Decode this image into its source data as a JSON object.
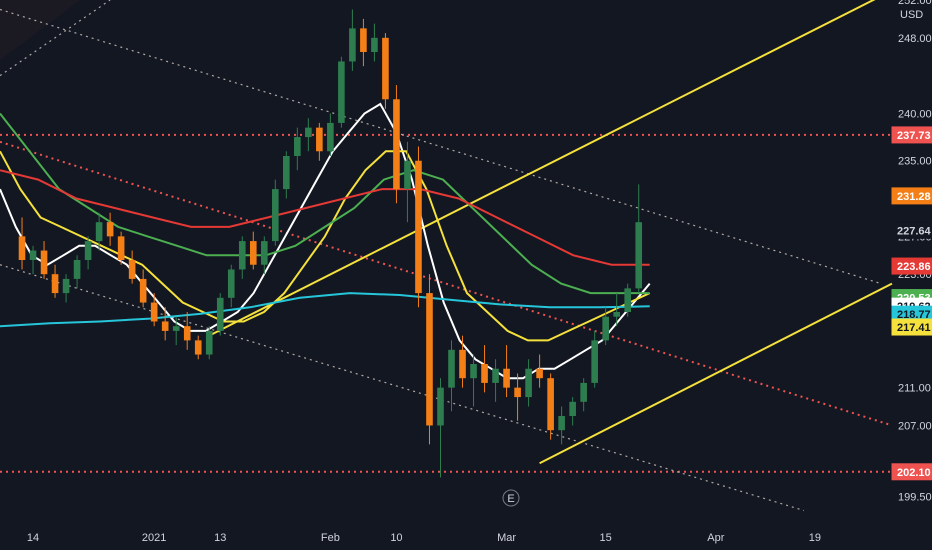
{
  "currency": "USD",
  "earnings_marker": "E",
  "colors": {
    "background": "#131722",
    "up": "#26a69a",
    "up_candle": "#2e7d4f",
    "down_candle": "#f57f17",
    "sma_white": "#ffffff",
    "sma_yellow": "#f5e13c",
    "sma_green": "#4caf50",
    "sma_red": "#e53935",
    "sma_teal": "#26c6da",
    "level_line": "#ef5350",
    "trendline": "#f5e13c",
    "channel": "#b0a9a5"
  },
  "chart_data": {
    "type": "candlestick",
    "x_axis": {
      "tick_labels": [
        "14",
        "2021",
        "13",
        "Feb",
        "10",
        "Mar",
        "15",
        "Apr",
        "19"
      ],
      "tick_index": [
        2,
        13,
        19,
        29,
        35,
        45,
        54,
        64,
        73
      ]
    },
    "y_axis": {
      "range": [
        197.0,
        252.0
      ],
      "tick_labels": [
        "199.50",
        "202.00",
        "207.00",
        "211.00",
        "219.00",
        "223.00",
        "227.00",
        "235.00",
        "240.00",
        "248.00",
        "252.00"
      ],
      "tick_values": [
        199.5,
        202.0,
        207.0,
        211.0,
        219.0,
        223.0,
        227.0,
        235.0,
        240.0,
        248.0,
        252.0
      ]
    },
    "candles": [
      [
        227.0,
        229.0,
        223.5,
        224.5
      ],
      [
        224.5,
        226.0,
        223.0,
        225.5
      ],
      [
        225.5,
        226.5,
        222.5,
        223.0
      ],
      [
        223.0,
        224.0,
        220.5,
        221.0
      ],
      [
        221.0,
        223.0,
        220.0,
        222.5
      ],
      [
        222.5,
        225.0,
        221.5,
        224.5
      ],
      [
        224.5,
        227.0,
        223.5,
        226.5
      ],
      [
        226.5,
        229.5,
        225.5,
        228.5
      ],
      [
        228.5,
        229.5,
        226.0,
        227.0
      ],
      [
        227.0,
        227.5,
        224.0,
        224.5
      ],
      [
        224.5,
        225.5,
        222.0,
        222.5
      ],
      [
        222.5,
        223.5,
        219.5,
        220.0
      ],
      [
        220.0,
        221.0,
        217.5,
        218.0
      ],
      [
        218.0,
        219.5,
        216.0,
        217.0
      ],
      [
        217.0,
        218.5,
        215.5,
        217.5
      ],
      [
        217.5,
        219.0,
        215.0,
        216.0
      ],
      [
        216.0,
        216.5,
        214.0,
        214.5
      ],
      [
        214.5,
        217.5,
        214.0,
        217.0
      ],
      [
        217.0,
        221.0,
        216.5,
        220.5
      ],
      [
        220.5,
        224.0,
        219.5,
        223.5
      ],
      [
        223.5,
        227.0,
        222.5,
        226.5
      ],
      [
        226.5,
        227.5,
        223.5,
        224.0
      ],
      [
        224.0,
        227.0,
        223.0,
        226.5
      ],
      [
        226.5,
        233.0,
        226.0,
        232.0
      ],
      [
        232.0,
        236.0,
        231.0,
        235.5
      ],
      [
        235.5,
        238.5,
        234.0,
        237.5
      ],
      [
        237.5,
        239.5,
        236.0,
        238.5
      ],
      [
        238.5,
        239.0,
        235.0,
        236.0
      ],
      [
        236.0,
        240.0,
        235.5,
        239.0
      ],
      [
        239.0,
        246.0,
        238.5,
        245.5
      ],
      [
        245.5,
        251.0,
        244.5,
        249.0
      ],
      [
        249.0,
        250.0,
        245.0,
        246.5
      ],
      [
        246.5,
        249.5,
        245.5,
        248.0
      ],
      [
        248.0,
        248.5,
        240.5,
        241.5
      ],
      [
        241.5,
        243.0,
        230.5,
        232.0
      ],
      [
        232.0,
        237.0,
        228.5,
        235.0
      ],
      [
        235.0,
        236.5,
        219.5,
        221.0
      ],
      [
        221.0,
        223.0,
        205.0,
        207.0
      ],
      [
        207.0,
        212.0,
        201.5,
        211.0
      ],
      [
        211.0,
        216.0,
        208.5,
        215.0
      ],
      [
        215.0,
        216.5,
        211.0,
        212.0
      ],
      [
        212.0,
        214.5,
        209.0,
        213.5
      ],
      [
        213.5,
        215.5,
        210.5,
        211.5
      ],
      [
        211.5,
        214.0,
        209.5,
        213.0
      ],
      [
        213.0,
        215.5,
        210.0,
        211.0
      ],
      [
        211.0,
        212.5,
        207.5,
        210.0
      ],
      [
        210.0,
        214.0,
        209.0,
        213.0
      ],
      [
        213.0,
        214.5,
        211.0,
        212.0
      ],
      [
        212.0,
        212.5,
        205.5,
        206.5
      ],
      [
        206.5,
        209.0,
        205.0,
        208.0
      ],
      [
        208.0,
        210.0,
        207.0,
        209.5
      ],
      [
        209.5,
        212.0,
        208.5,
        211.5
      ],
      [
        211.5,
        217.0,
        211.0,
        216.0
      ],
      [
        216.0,
        219.5,
        215.5,
        218.5
      ],
      [
        218.5,
        221.0,
        217.5,
        219.0
      ],
      [
        219.0,
        222.0,
        218.5,
        221.5
      ],
      [
        221.5,
        232.5,
        221.0,
        228.5
      ]
    ],
    "candle_x_index": [
      1,
      2,
      3,
      4,
      5,
      6,
      7,
      8,
      9,
      10,
      11,
      12,
      13,
      14,
      15,
      16,
      17,
      18,
      19,
      20,
      21,
      22,
      23,
      24,
      25,
      26,
      27,
      28,
      29,
      30,
      31,
      32,
      33,
      34,
      35,
      36,
      37,
      38,
      39,
      40,
      41,
      42,
      43,
      44,
      45,
      46,
      47,
      48,
      49,
      50,
      51,
      52,
      53,
      54,
      55,
      56,
      57
    ],
    "x_domain": [
      -1,
      80
    ],
    "series": [
      {
        "name": "",
        "color_key": "sma_white",
        "values": [
          232,
          228,
          225,
          224,
          225,
          226,
          226,
          225,
          224,
          222,
          220,
          218,
          217,
          217,
          218,
          219,
          221,
          224,
          227,
          230,
          233,
          236,
          238,
          240,
          241,
          238,
          233,
          226,
          220,
          216,
          214,
          213,
          212,
          212,
          213,
          213,
          214,
          215,
          216,
          218,
          220,
          222
        ]
      },
      {
        "name": "",
        "color_key": "sma_yellow",
        "values": [
          236,
          232,
          229,
          228,
          227,
          226,
          225,
          224,
          222,
          220,
          219,
          218,
          218,
          219,
          221,
          224,
          227,
          231,
          234,
          236,
          236,
          232,
          226,
          221,
          219,
          217,
          216,
          216,
          217,
          218,
          219,
          220,
          221
        ]
      },
      {
        "name": "",
        "color_key": "sma_green",
        "values": [
          240,
          236,
          232,
          230,
          228,
          227,
          226,
          225,
          225,
          225,
          226,
          228,
          230,
          233,
          234,
          233,
          230,
          227,
          224,
          222,
          221,
          221,
          221
        ]
      },
      {
        "name": "",
        "color_key": "sma_red",
        "values": [
          234,
          233,
          231,
          230,
          229,
          228,
          228,
          229,
          230,
          231,
          232,
          232,
          231,
          229,
          227,
          225,
          224,
          224
        ]
      },
      {
        "name": "",
        "color_key": "sma_teal",
        "values": [
          217.5,
          217.8,
          218.0,
          218.3,
          218.8,
          219.5,
          220.5,
          221.0,
          220.8,
          220.3,
          219.8,
          219.5,
          219.5,
          219.6
        ]
      }
    ],
    "horizontal_levels": [
      237.73,
      202.1
    ],
    "price_badges": [
      {
        "label": "237.73",
        "value": 237.73,
        "bg": "#ef5350",
        "fg": "#ffffff"
      },
      {
        "label": "231.28",
        "value": 231.28,
        "bg": "#f57f17",
        "fg": "#ffffff"
      },
      {
        "label": "227.64",
        "value": 227.64,
        "bg": "#131722",
        "fg": "#d1d4dc"
      },
      {
        "label": "223.86",
        "value": 223.86,
        "bg": "#e53935",
        "fg": "#ffffff"
      },
      {
        "label": "220.53",
        "value": 220.53,
        "bg": "#4caf50",
        "fg": "#ffffff"
      },
      {
        "label": "219.62",
        "value": 219.62,
        "bg": "#ffffff",
        "fg": "#131722"
      },
      {
        "label": "218.77",
        "value": 218.77,
        "bg": "#26c6da",
        "fg": "#131722"
      },
      {
        "label": "217.41",
        "value": 217.41,
        "bg": "#f5e13c",
        "fg": "#131722"
      },
      {
        "label": "202.10",
        "value": 202.1,
        "bg": "#ef5350",
        "fg": "#ffffff"
      }
    ]
  }
}
